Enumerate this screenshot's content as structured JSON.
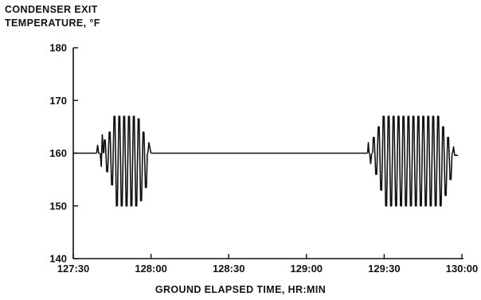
{
  "chart_data": {
    "type": "line",
    "title": "",
    "ylabel_lines": [
      "CONDENSER EXIT",
      "TEMPERATURE, °F"
    ],
    "xlabel": "GROUND ELAPSED TIME, HR:MIN",
    "ylim": [
      140,
      180
    ],
    "xlim_minutes": [
      0,
      150
    ],
    "x_unit": "minutes after 127:30 GET",
    "y_ticks": [
      140,
      150,
      160,
      170,
      180
    ],
    "x_ticks": [
      {
        "value": 0,
        "label": "127:30"
      },
      {
        "value": 30,
        "label": "128:00"
      },
      {
        "value": 60,
        "label": "128:30"
      },
      {
        "value": 90,
        "label": "129:00"
      },
      {
        "value": 120,
        "label": "129:30"
      },
      {
        "value": 150,
        "label": "130:00"
      }
    ],
    "grid": false,
    "legend": "none",
    "color": "#111111",
    "baseline": 160,
    "series": [
      {
        "segments": [
          {
            "x": [
              0,
              9.0
            ],
            "y": [
              160,
              160
            ]
          },
          {
            "x": [
              9.0,
              9.4,
              9.8,
              10.2
            ],
            "y": [
              160,
              161.5,
              160,
              160
            ]
          },
          {
            "x": [
              10.4,
              10.8,
              11.2,
              11.6
            ],
            "y": [
              160,
              157.5,
              163.5,
              160
            ]
          },
          {
            "oscillation": true,
            "x_start": 11.8,
            "x_end": 28.6,
            "cycles": 9,
            "amplitudes_max": [
              162.5,
              164,
              167,
              167,
              167,
              167,
              167,
              166.5,
              164
            ],
            "amplitudes_min": [
              156.5,
              154,
              150,
              150,
              150,
              150,
              150,
              151,
              153.5
            ]
          },
          {
            "x": [
              28.8,
              29.2,
              29.6,
              30.0
            ],
            "y": [
              160,
              162,
              161,
              160
            ]
          },
          {
            "x": [
              30.0,
              113.5
            ],
            "y": [
              160,
              160
            ]
          },
          {
            "x": [
              113.6,
              113.9,
              114.2
            ],
            "y": [
              160,
              162,
              160
            ]
          },
          {
            "x": [
              114.4,
              114.8,
              115.2
            ],
            "y": [
              160,
              158,
              160
            ]
          },
          {
            "oscillation": true,
            "x_start": 115.6,
            "x_end": 146.2,
            "cycles": 16,
            "amplitudes_max": [
              163,
              165,
              167,
              167,
              167,
              167,
              167,
              167,
              167,
              167,
              167,
              167,
              167,
              167,
              165,
              163
            ],
            "amplitudes_min": [
              156,
              153,
              150,
              150,
              150,
              150,
              150,
              150,
              150,
              150,
              150,
              150,
              150,
              150,
              152,
              155
            ]
          },
          {
            "x": [
              146.4,
              146.8,
              147.2,
              148.5
            ],
            "y": [
              160,
              161.2,
              159.6,
              159.6
            ]
          }
        ]
      }
    ]
  }
}
